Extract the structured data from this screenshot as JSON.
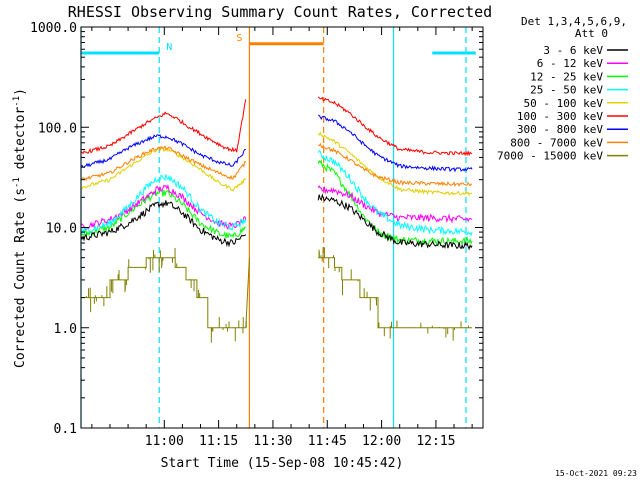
{
  "chart_data": {
    "type": "line",
    "title": "RHESSI Observing Summary Count Rates, Corrected",
    "xlabel": "Start Time (15-Sep-08 10:45:42)",
    "ylabel_main": "Corrected Count Rate (s",
    "ylabel_sup1": "-1",
    "ylabel_mid": " detector",
    "ylabel_sup2": "-1",
    "ylabel_end": ")",
    "y_scale": "log",
    "ylim": [
      0.1,
      1000
    ],
    "x_range_minutes": [
      -8,
      103
    ],
    "x_ticks": [
      {
        "label": "11:00",
        "m": 15
      },
      {
        "label": "11:15",
        "m": 30
      },
      {
        "label": "11:30",
        "m": 45
      },
      {
        "label": "11:45",
        "m": 60
      },
      {
        "label": "12:00",
        "m": 75
      },
      {
        "label": "12:15",
        "m": 90
      }
    ],
    "y_ticks": [
      {
        "label": "1000.0",
        "v": 1000
      },
      {
        "label": "100.0",
        "v": 100
      },
      {
        "label": "10.0",
        "v": 10
      },
      {
        "label": "1.0",
        "v": 1
      },
      {
        "label": "0.1",
        "v": 0.1
      }
    ],
    "legend_header": [
      "Det 1,3,4,5,6,9,",
      "Att 0"
    ],
    "legend_position": "right",
    "timestamp": "15-Oct-2021 09:23",
    "flags": [
      {
        "label": "N",
        "color": "#00e0ff",
        "t0": -8,
        "t1": 13.6,
        "level": 550
      },
      {
        "label": "",
        "color": "#00e0ff",
        "t0": 89,
        "t1": 101,
        "level": 550
      },
      {
        "label": "S",
        "color": "#ff8000",
        "t0": 38.5,
        "t1": 59,
        "level": 680
      }
    ],
    "markers": [
      {
        "t": -8,
        "color": "#00e0ff",
        "style": "solid"
      },
      {
        "t": 13.6,
        "color": "#00e0ff",
        "style": "dashed"
      },
      {
        "t": 78.3,
        "color": "#00e0ff",
        "style": "solid"
      },
      {
        "t": 98.3,
        "color": "#00e0ff",
        "style": "dashed"
      },
      {
        "t": 38.5,
        "color": "#ff8000",
        "style": "solid"
      },
      {
        "t": 59,
        "color": "#ff8000",
        "style": "dashed"
      }
    ],
    "series": [
      {
        "name": "3 - 6 keV",
        "color": "#000000",
        "seg1": [
          [
            -8,
            7.8
          ],
          [
            0,
            9
          ],
          [
            5,
            11
          ],
          [
            10,
            14.5
          ],
          [
            13,
            17
          ],
          [
            16,
            17.5
          ],
          [
            20,
            14
          ],
          [
            25,
            9.5
          ],
          [
            30,
            7.5
          ],
          [
            34,
            7
          ],
          [
            37.5,
            8.5
          ]
        ],
        "seg2": [
          [
            57.5,
            20
          ],
          [
            62,
            18.5
          ],
          [
            66,
            16
          ],
          [
            70,
            12
          ],
          [
            74,
            9
          ],
          [
            80,
            7
          ],
          [
            88,
            6.8
          ],
          [
            95,
            6.6
          ],
          [
            100,
            6.6
          ]
        ]
      },
      {
        "name": "6 - 12 keV",
        "color": "#ff00ff",
        "seg1": [
          [
            -8,
            10
          ],
          [
            0,
            12
          ],
          [
            5,
            15
          ],
          [
            10,
            20
          ],
          [
            13,
            24
          ],
          [
            16,
            25
          ],
          [
            20,
            20
          ],
          [
            25,
            14
          ],
          [
            30,
            11
          ],
          [
            34,
            10.2
          ],
          [
            37.5,
            12
          ]
        ],
        "seg2": [
          [
            57.5,
            24
          ],
          [
            62,
            23.5
          ],
          [
            66,
            21
          ],
          [
            70,
            17
          ],
          [
            74,
            14
          ],
          [
            80,
            12.5
          ],
          [
            88,
            12.5
          ],
          [
            95,
            12.2
          ],
          [
            100,
            12
          ]
        ]
      },
      {
        "name": "12 - 25 keV",
        "color": "#00ff00",
        "seg1": [
          [
            -8,
            8.5
          ],
          [
            0,
            10
          ],
          [
            5,
            14
          ],
          [
            10,
            19
          ],
          [
            13,
            22
          ],
          [
            16,
            22
          ],
          [
            20,
            17
          ],
          [
            25,
            11
          ],
          [
            30,
            8.7
          ],
          [
            34,
            8
          ],
          [
            37.5,
            10
          ]
        ],
        "seg2": [
          [
            57.5,
            45
          ],
          [
            62,
            35
          ],
          [
            66,
            22
          ],
          [
            70,
            13
          ],
          [
            74,
            9
          ],
          [
            80,
            7.5
          ],
          [
            88,
            7.4
          ],
          [
            95,
            7.3
          ],
          [
            100,
            7.3
          ]
        ]
      },
      {
        "name": "25 - 50 keV",
        "color": "#00ffff",
        "seg1": [
          [
            -8,
            9
          ],
          [
            0,
            11
          ],
          [
            5,
            16
          ],
          [
            10,
            25
          ],
          [
            13,
            31
          ],
          [
            16,
            32
          ],
          [
            20,
            25
          ],
          [
            25,
            15
          ],
          [
            30,
            11
          ],
          [
            34,
            10
          ],
          [
            37.5,
            12
          ]
        ],
        "seg2": [
          [
            57.5,
            55
          ],
          [
            62,
            45
          ],
          [
            66,
            32
          ],
          [
            70,
            20
          ],
          [
            74,
            14
          ],
          [
            80,
            10.5
          ],
          [
            88,
            9.5
          ],
          [
            95,
            9.2
          ],
          [
            100,
            9
          ]
        ]
      },
      {
        "name": "50 - 100 keV",
        "color": "#e0d000",
        "seg1": [
          [
            -8,
            25
          ],
          [
            0,
            30
          ],
          [
            5,
            40
          ],
          [
            10,
            52
          ],
          [
            13,
            60
          ],
          [
            16,
            60
          ],
          [
            20,
            50
          ],
          [
            25,
            38
          ],
          [
            30,
            28
          ],
          [
            34,
            24
          ],
          [
            37.5,
            30
          ]
        ],
        "seg2": [
          [
            57.5,
            88
          ],
          [
            62,
            72
          ],
          [
            66,
            56
          ],
          [
            70,
            42
          ],
          [
            74,
            32
          ],
          [
            80,
            24
          ],
          [
            88,
            22.5
          ],
          [
            95,
            22
          ],
          [
            100,
            22
          ]
        ]
      },
      {
        "name": "100 - 300 keV",
        "color": "#ff0000",
        "seg1": [
          [
            -8,
            55
          ],
          [
            0,
            65
          ],
          [
            5,
            85
          ],
          [
            10,
            110
          ],
          [
            13,
            125
          ],
          [
            15.5,
            138
          ],
          [
            18,
            125
          ],
          [
            22,
            100
          ],
          [
            27,
            78
          ],
          [
            32,
            62
          ],
          [
            35,
            58
          ],
          [
            37.5,
            190
          ]
        ],
        "seg2": [
          [
            57.5,
            195
          ],
          [
            62,
            175
          ],
          [
            66,
            140
          ],
          [
            70,
            105
          ],
          [
            74,
            80
          ],
          [
            80,
            60
          ],
          [
            88,
            56
          ],
          [
            95,
            55
          ],
          [
            100,
            55
          ]
        ]
      },
      {
        "name": "300 - 800 keV",
        "color": "#0000ff",
        "seg1": [
          [
            -8,
            40
          ],
          [
            0,
            48
          ],
          [
            5,
            62
          ],
          [
            10,
            75
          ],
          [
            13,
            82
          ],
          [
            16,
            80
          ],
          [
            20,
            68
          ],
          [
            25,
            53
          ],
          [
            30,
            45
          ],
          [
            34,
            41
          ],
          [
            37.5,
            60
          ]
        ],
        "seg2": [
          [
            57.5,
            128
          ],
          [
            62,
            115
          ],
          [
            66,
            92
          ],
          [
            70,
            68
          ],
          [
            74,
            52
          ],
          [
            80,
            41
          ],
          [
            88,
            39
          ],
          [
            95,
            38
          ],
          [
            100,
            38
          ]
        ]
      },
      {
        "name": "800 - 7000 keV",
        "color": "#ff8000",
        "seg1": [
          [
            -8,
            30
          ],
          [
            0,
            35
          ],
          [
            5,
            45
          ],
          [
            10,
            56
          ],
          [
            13,
            62
          ],
          [
            16,
            62
          ],
          [
            20,
            52
          ],
          [
            25,
            42
          ],
          [
            30,
            35
          ],
          [
            34,
            31
          ],
          [
            37.5,
            45
          ]
        ],
        "seg2": [
          [
            57.5,
            68
          ],
          [
            62,
            58
          ],
          [
            66,
            48
          ],
          [
            70,
            38
          ],
          [
            74,
            32
          ],
          [
            80,
            28
          ],
          [
            88,
            27.5
          ],
          [
            95,
            27
          ],
          [
            100,
            27
          ]
        ]
      },
      {
        "name": "7000 - 15000 keV",
        "color": "#808000",
        "seg1": [
          [
            -8,
            2
          ],
          [
            0,
            2
          ],
          [
            0,
            3
          ],
          [
            5,
            3
          ],
          [
            5,
            4
          ],
          [
            10,
            4
          ],
          [
            10,
            5
          ],
          [
            18,
            5
          ],
          [
            18,
            4
          ],
          [
            21,
            4
          ],
          [
            21,
            3
          ],
          [
            24,
            3
          ],
          [
            24,
            2
          ],
          [
            27,
            2
          ],
          [
            27,
            1
          ],
          [
            37.5,
            1
          ],
          [
            38.5,
            5
          ]
        ],
        "seg2": [
          [
            57.5,
            5
          ],
          [
            62,
            5
          ],
          [
            62,
            4
          ],
          [
            64,
            4
          ],
          [
            64,
            3
          ],
          [
            69,
            3
          ],
          [
            69,
            2
          ],
          [
            74,
            2
          ],
          [
            74,
            1
          ],
          [
            100,
            1
          ]
        ]
      }
    ]
  }
}
